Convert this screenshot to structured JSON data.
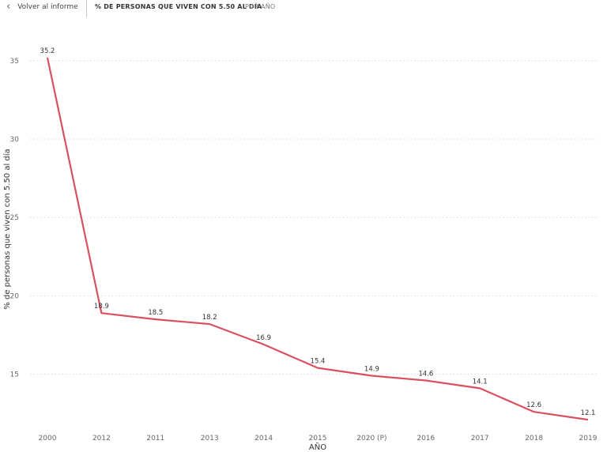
{
  "header": {
    "back_label": "Volver al informe",
    "title": "% DE PERSONAS QUE VIVEN CON 5.50 AL DÍA",
    "subtitle": "POR AÑO"
  },
  "colors": {
    "line": "#d9515e",
    "grid": "#d9d9d9"
  },
  "chart_data": {
    "type": "line",
    "categories": [
      "2000",
      "2012",
      "2011",
      "2013",
      "2014",
      "2015",
      "2020 (P)",
      "2016",
      "2017",
      "2018",
      "2019"
    ],
    "series": [
      {
        "values": [
          35.2,
          18.9,
          18.5,
          18.2,
          16.9,
          15.4,
          14.9,
          14.6,
          14.1,
          12.6,
          12.1
        ]
      }
    ],
    "data_labels": [
      "35.2",
      "18.9",
      "18.5",
      "18.2",
      "16.9",
      "15.4",
      "14.9",
      "14.6",
      "14.1",
      "12.6",
      "12.1"
    ],
    "xlabel": "AÑO",
    "ylabel": "% de personas que viven con 5.50 al día",
    "ylim": [
      11.5,
      36.5
    ],
    "yticks": [
      15,
      20,
      25,
      30,
      35
    ],
    "grid": true,
    "gridlines_y": [
      15,
      20,
      25,
      30,
      35
    ]
  }
}
